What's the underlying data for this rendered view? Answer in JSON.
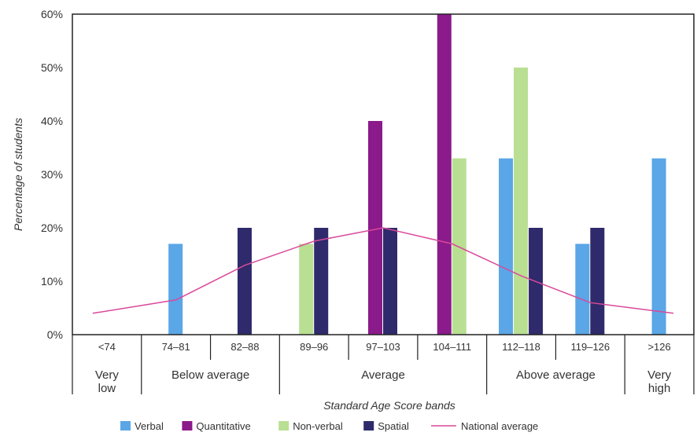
{
  "chart_data": {
    "type": "bar",
    "xlabel": "Standard Age Score bands",
    "ylabel": "Percentage of students",
    "ylim": [
      0,
      60
    ],
    "yticks": [
      0,
      10,
      20,
      30,
      40,
      50,
      60
    ],
    "ytick_suffix": "%",
    "grid": false,
    "legend_position": "bottom",
    "categories": [
      "<74",
      "74–81",
      "82–88",
      "89–96",
      "97–103",
      "104–111",
      "112–118",
      "119–126",
      ">126"
    ],
    "series": [
      {
        "name": "Verbal",
        "color": "#5aa6e6",
        "values": [
          0,
          17,
          0,
          0,
          0,
          0,
          33,
          17,
          33
        ]
      },
      {
        "name": "Quantitative",
        "color": "#8b1a8b",
        "values": [
          0,
          0,
          0,
          0,
          40,
          60,
          0,
          0,
          0
        ]
      },
      {
        "name": "Non-verbal",
        "color": "#b9df93",
        "values": [
          0,
          0,
          0,
          17,
          0,
          33,
          50,
          0,
          0
        ]
      },
      {
        "name": "Spatial",
        "color": "#2e2a6b",
        "values": [
          0,
          0,
          20,
          20,
          20,
          0,
          20,
          20,
          0
        ]
      }
    ],
    "line": {
      "name": "National average",
      "color": "#d9499a",
      "values": [
        4,
        6.5,
        13,
        17.5,
        20,
        17,
        11,
        6,
        4
      ]
    },
    "groups": [
      {
        "label_lines": [
          "Very",
          "low"
        ],
        "categories": [
          0
        ]
      },
      {
        "label_lines": [
          "Below average"
        ],
        "categories": [
          1,
          2
        ]
      },
      {
        "label_lines": [
          "Average"
        ],
        "categories": [
          3,
          4,
          5
        ]
      },
      {
        "label_lines": [
          "Above average"
        ],
        "categories": [
          6,
          7
        ]
      },
      {
        "label_lines": [
          "Very",
          "high"
        ],
        "categories": [
          8
        ]
      }
    ]
  }
}
